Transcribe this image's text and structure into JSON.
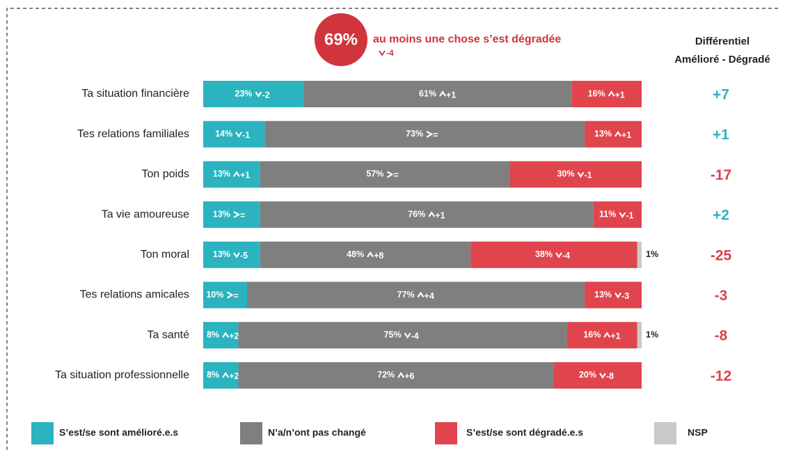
{
  "chart_data": {
    "type": "stacked-bar",
    "headline": {
      "value": 69,
      "value_label": "69%",
      "text": "au moins une chose s’est dégradée",
      "change": "-4"
    },
    "differential_title": [
      "Différentiel",
      "Amélioré - Dégradé"
    ],
    "categories": [
      "Ta situation financière",
      "Tes relations familiales",
      "Ton poids",
      "Ta vie amoureuse",
      "Ton moral",
      "Tes relations amicales",
      "Ta santé",
      "Ta situation professionnelle"
    ],
    "xlim": [
      0,
      100
    ],
    "series": [
      {
        "name": "S’est/se sont amélioré.e.s",
        "color": "#2bb3bf",
        "values": [
          23,
          14,
          13,
          13,
          13,
          10,
          8,
          8
        ],
        "value_labels": [
          "23%",
          "14%",
          "13%",
          "13%",
          "13%",
          "10%",
          "8%",
          "8%"
        ],
        "changes": [
          "-2",
          "-1",
          "+1",
          "=",
          "-5",
          "=",
          "+2",
          "+2"
        ]
      },
      {
        "name": "N’a/n’ont pas changé",
        "color": "#7f7f7f",
        "values": [
          61,
          73,
          57,
          76,
          48,
          77,
          75,
          72
        ],
        "value_labels": [
          "61%",
          "73%",
          "57%",
          "76%",
          "48%",
          "77%",
          "75%",
          "72%"
        ],
        "changes": [
          "+1",
          "=",
          "=",
          "+1",
          "+8",
          "+4",
          "-4",
          "+6"
        ]
      },
      {
        "name": "S’est/se sont dégradé.e.s",
        "color": "#e0454d",
        "values": [
          16,
          13,
          30,
          11,
          38,
          13,
          16,
          20
        ],
        "value_labels": [
          "16%",
          "13%",
          "30%",
          "11%",
          "38%",
          "13%",
          "16%",
          "20%"
        ],
        "changes": [
          "+1",
          "+1",
          "-1",
          "-1",
          "-4",
          "-3",
          "+1",
          "-8"
        ]
      },
      {
        "name": "NSP",
        "color": "#c9c9c9",
        "values": [
          null,
          null,
          null,
          null,
          1,
          null,
          1,
          null
        ],
        "value_labels": [
          null,
          null,
          null,
          null,
          "1%",
          null,
          "1%",
          null
        ]
      }
    ],
    "differentials": {
      "values": [
        7,
        1,
        -17,
        2,
        -25,
        -3,
        -8,
        -12
      ],
      "labels": [
        "+7",
        "+1",
        "-17",
        "+2",
        "-25",
        "-3",
        "-8",
        "-12"
      ],
      "colors": {
        "positive": "#2bb3bf",
        "negative": "#d9434b"
      }
    }
  }
}
